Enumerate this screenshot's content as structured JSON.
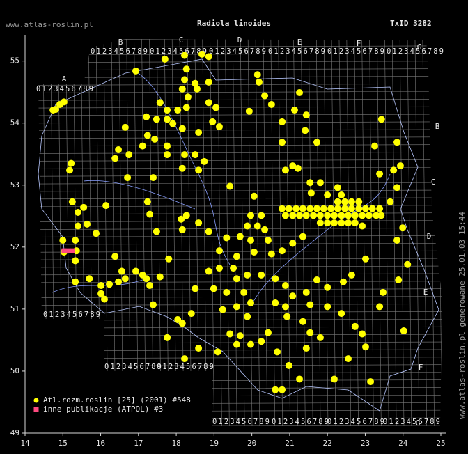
{
  "site": "www.atlas-roslin.pl",
  "taxon_id": "TxID 3282",
  "watermark": "www.atlas-roslin.pl generowane 25.01.03 15:44",
  "atpol": {
    "columns": [
      "A",
      "B",
      "C",
      "D",
      "E",
      "F",
      "G"
    ],
    "rows": [
      "B",
      "C",
      "D",
      "E",
      "F",
      "G"
    ],
    "digits": "0123456789"
  },
  "chart_data": {
    "type": "scatter",
    "title": "Radiola linoides",
    "xlim": [
      14,
      25
    ],
    "ylim": [
      49,
      55.4
    ],
    "xticks": [
      14,
      15,
      16,
      17,
      18,
      19,
      20,
      21,
      22,
      23,
      24,
      25
    ],
    "yticks": [
      49,
      50,
      51,
      52,
      53,
      54,
      55
    ],
    "legend": "lower left",
    "series": [
      {
        "name": "Atl.rozm.roslin [25] (2001) #548",
        "color": "#ffff00",
        "marker": "circle",
        "x": [
          14.81,
          14.92,
          15.03,
          14.74,
          17.7,
          18.22,
          18.68,
          18.86,
          16.93,
          18.27,
          18.22,
          18.5,
          18.16,
          18.55,
          18.31,
          18.86,
          17.57,
          17.76,
          18.04,
          18.27,
          18.86,
          19.05,
          17.48,
          17.76,
          17.91,
          18.16,
          18.59,
          18.96,
          19.14,
          17.21,
          16.65,
          17.24,
          17.43,
          17.76,
          17.11,
          16.47,
          16.75,
          16.38,
          15.22,
          15.18,
          17.76,
          18.22,
          18.5,
          18.16,
          18.59,
          18.74,
          16.71,
          17.39,
          15.25,
          15.55,
          16.14,
          15.4,
          17.24,
          17.3,
          17.48,
          15.4,
          15.64,
          15.88,
          15.0,
          15.33,
          15.36,
          15.03,
          19.93,
          20.15,
          20.19,
          20.34,
          20.52,
          21.26,
          21.13,
          21.44,
          20.8,
          21.41,
          21.72,
          20.8,
          21.08,
          21.22,
          20.89,
          21.54,
          21.81,
          21.57,
          22.27,
          20.8,
          20.98,
          21.17,
          21.35,
          21.54,
          21.72,
          21.9,
          22.09,
          22.27,
          22.46,
          22.64,
          22.83,
          23.01,
          23.19,
          23.38,
          20.89,
          21.08,
          21.26,
          21.44,
          21.63,
          21.81,
          22.0,
          22.18,
          22.37,
          22.55,
          22.73,
          22.92,
          23.1,
          23.29,
          21.81,
          22.0,
          22.18,
          22.37,
          22.55,
          22.73,
          22.27,
          22.46,
          22.64,
          22.83,
          22.0,
          22.37,
          23.25,
          23.84,
          23.38,
          23.75,
          23.93,
          23.84,
          23.66,
          23.99,
          23.84,
          24.12,
          23.01,
          22.64,
          22.42,
          22.0,
          21.72,
          22.0,
          22.37,
          22.73,
          22.92,
          23.38,
          23.47,
          23.88,
          24.02,
          23.01,
          23.14,
          22.55,
          22.18,
          23.43,
          22.92,
          23.42,
          18.27,
          18.13,
          18.59,
          18.86,
          18.16,
          19.42,
          20.06,
          19.97,
          20.25,
          20.15,
          20.34,
          19.88,
          19.69,
          19.97,
          20.43,
          19.33,
          19.14,
          19.6,
          20.06,
          20.52,
          20.8,
          21.08,
          21.35,
          19.51,
          19.88,
          19.6,
          20.25,
          20.62,
          20.89,
          21.08,
          21.44,
          19.79,
          19.97,
          19.6,
          19.88,
          20.62,
          20.89,
          21.54,
          21.35,
          20.93,
          19.42,
          19.69,
          19.97,
          20.25,
          20.43,
          20.67,
          21.54,
          21.81,
          21.44,
          20.98,
          21.26,
          20.62,
          20.8,
          19.1,
          19.6,
          19.23,
          18.99,
          18.86,
          18.5,
          18.4,
          18.04,
          18.16,
          18.59,
          18.22,
          19.33,
          19.14,
          16.56,
          16.93,
          17.11,
          16.65,
          16.47,
          17.21,
          17.57,
          17.3,
          16.01,
          16.23,
          15.7,
          16.01,
          16.1,
          15.33,
          17.39,
          17.8,
          16.38,
          17.76,
          15.33
        ],
        "values": [
          54.22,
          54.3,
          54.34,
          54.21,
          55.03,
          55.09,
          55.11,
          55.07,
          54.84,
          54.87,
          54.7,
          54.64,
          54.55,
          54.55,
          54.42,
          54.66,
          54.33,
          54.21,
          54.21,
          54.25,
          54.33,
          54.25,
          54.06,
          54.06,
          53.99,
          53.91,
          53.85,
          54.02,
          53.94,
          54.1,
          53.93,
          53.8,
          53.74,
          53.63,
          53.63,
          53.57,
          53.49,
          53.43,
          53.35,
          53.24,
          53.49,
          53.49,
          53.49,
          53.27,
          53.24,
          53.38,
          53.12,
          53.12,
          52.73,
          52.64,
          52.67,
          52.56,
          52.73,
          52.53,
          52.25,
          52.34,
          52.37,
          52.22,
          52.11,
          52.11,
          51.94,
          51.92,
          54.19,
          54.78,
          54.66,
          54.44,
          54.3,
          54.49,
          54.21,
          54.13,
          54.02,
          53.88,
          53.69,
          53.69,
          53.31,
          53.27,
          53.24,
          53.04,
          53.04,
          52.87,
          52.96,
          52.62,
          52.62,
          52.62,
          52.62,
          52.62,
          52.62,
          52.62,
          52.62,
          52.62,
          52.62,
          52.62,
          52.62,
          52.62,
          52.62,
          52.62,
          52.51,
          52.51,
          52.51,
          52.51,
          52.51,
          52.51,
          52.51,
          52.51,
          52.51,
          52.51,
          52.51,
          52.51,
          52.51,
          52.51,
          52.39,
          52.39,
          52.39,
          52.39,
          52.39,
          52.39,
          52.73,
          52.73,
          52.73,
          52.73,
          52.84,
          52.84,
          53.63,
          53.69,
          53.18,
          53.24,
          53.31,
          52.96,
          52.73,
          52.31,
          52.11,
          51.72,
          51.81,
          51.55,
          51.44,
          51.35,
          51.47,
          51.04,
          50.93,
          50.72,
          50.6,
          51.04,
          51.27,
          51.47,
          50.65,
          50.39,
          49.83,
          50.2,
          49.87,
          54.06,
          52.34,
          52.51,
          52.51,
          52.45,
          52.39,
          52.25,
          52.28,
          52.98,
          52.82,
          52.51,
          52.51,
          52.34,
          52.28,
          52.34,
          52.17,
          52.11,
          52.11,
          52.15,
          51.94,
          51.85,
          51.92,
          51.89,
          51.94,
          52.06,
          52.17,
          51.66,
          51.55,
          51.49,
          51.55,
          51.49,
          51.38,
          51.21,
          51.27,
          51.27,
          51.1,
          51.04,
          50.88,
          51.1,
          51.04,
          51.07,
          50.8,
          50.88,
          50.6,
          50.57,
          50.43,
          50.48,
          50.62,
          50.31,
          50.62,
          50.54,
          50.37,
          50.09,
          49.87,
          49.7,
          49.7,
          50.31,
          50.43,
          50.99,
          51.33,
          51.61,
          51.33,
          50.93,
          50.83,
          50.77,
          50.37,
          50.2,
          51.27,
          51.66,
          51.61,
          51.61,
          51.55,
          51.49,
          51.44,
          51.49,
          51.52,
          51.38,
          51.38,
          51.4,
          51.49,
          51.25,
          51.16,
          51.44,
          51.07,
          51.81,
          51.85,
          50.54,
          51.78
        ]
      },
      {
        "name": "inne publikacje (ATPOL) #3",
        "color": "#ff4a80",
        "marker": "square",
        "x": [
          15.03,
          15.14,
          15.25
        ],
        "values": [
          51.94,
          51.94,
          51.94
        ]
      }
    ]
  }
}
